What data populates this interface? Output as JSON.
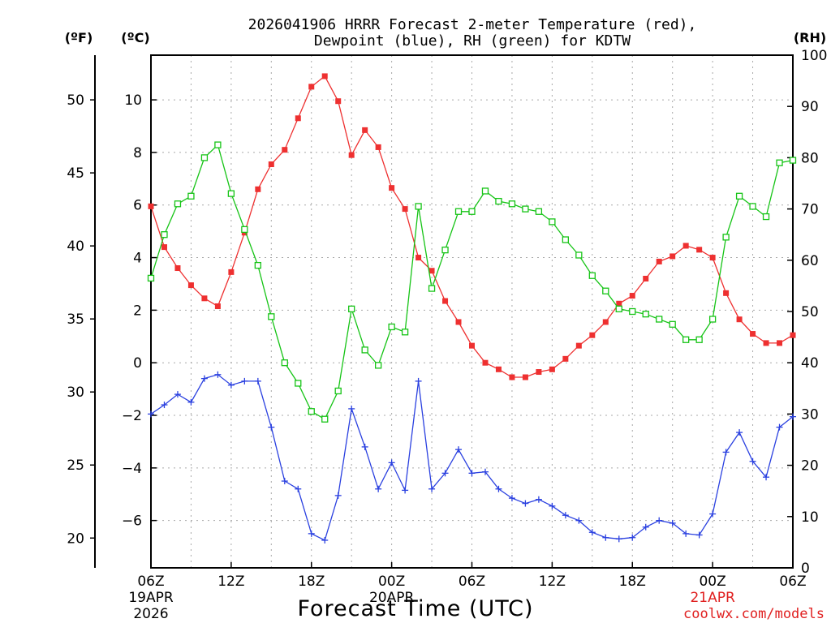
{
  "chart_data": {
    "type": "line",
    "title_line1": "2026041906 HRRR Forecast 2-meter Temperature (red),",
    "title_line2": "Dewpoint (blue), RH (green) for KDTW",
    "xlabel": "Forecast Time (UTC)",
    "watermark": "coolwx.com/models",
    "unit_f": "(ºF)",
    "unit_c": "(ºC)",
    "unit_rh": "(RH)",
    "x_range_hours": [
      0,
      48
    ],
    "y_celsius_range": [
      -7.8,
      11.7
    ],
    "y_rh_range": [
      0,
      100
    ],
    "x_ticks": [
      {
        "h": 0,
        "label": "06Z",
        "sub1": "19APR",
        "sub2": "2026"
      },
      {
        "h": 6,
        "label": "12Z",
        "sub1": "",
        "sub2": ""
      },
      {
        "h": 12,
        "label": "18Z",
        "sub1": "",
        "sub2": ""
      },
      {
        "h": 18,
        "label": "00Z",
        "sub1": "20APR",
        "sub2": ""
      },
      {
        "h": 24,
        "label": "06Z",
        "sub1": "",
        "sub2": ""
      },
      {
        "h": 30,
        "label": "12Z",
        "sub1": "",
        "sub2": ""
      },
      {
        "h": 36,
        "label": "18Z",
        "sub1": "",
        "sub2": ""
      },
      {
        "h": 42,
        "label": "00Z",
        "sub1": "21APR",
        "sub2": ""
      },
      {
        "h": 48,
        "label": "06Z",
        "sub1": "",
        "sub2": ""
      }
    ],
    "c_ticks": [
      {
        "v": 10,
        "label": "10"
      },
      {
        "v": 8,
        "label": "8"
      },
      {
        "v": 6,
        "label": "6"
      },
      {
        "v": 4,
        "label": "4"
      },
      {
        "v": 2,
        "label": "2"
      },
      {
        "v": 0,
        "label": "0"
      },
      {
        "v": -2,
        "label": "−2"
      },
      {
        "v": -4,
        "label": "−4"
      },
      {
        "v": -6,
        "label": "−6"
      }
    ],
    "f_ticks": [
      {
        "v": 50,
        "label": "50"
      },
      {
        "v": 45,
        "label": "45"
      },
      {
        "v": 40,
        "label": "40"
      },
      {
        "v": 35,
        "label": "35"
      },
      {
        "v": 30,
        "label": "30"
      },
      {
        "v": 25,
        "label": "25"
      },
      {
        "v": 20,
        "label": "20"
      }
    ],
    "rh_ticks": [
      {
        "v": 100,
        "label": "100"
      },
      {
        "v": 90,
        "label": "90"
      },
      {
        "v": 80,
        "label": "80"
      },
      {
        "v": 70,
        "label": "70"
      },
      {
        "v": 60,
        "label": "60"
      },
      {
        "v": 50,
        "label": "50"
      },
      {
        "v": 40,
        "label": "40"
      },
      {
        "v": 30,
        "label": "30"
      },
      {
        "v": 20,
        "label": "20"
      },
      {
        "v": 10,
        "label": "10"
      },
      {
        "v": 0,
        "label": "0"
      }
    ],
    "colors": {
      "temperature": "#ee3030",
      "dewpoint": "#2a40e0",
      "rh": "#16c416",
      "grid": "#a8a8a8",
      "axis": "#000000"
    },
    "series": [
      {
        "name": "Temperature (°C)",
        "key": "temperature",
        "marker": "filled-square",
        "values": [
          5.95,
          4.4,
          3.6,
          2.95,
          2.45,
          2.15,
          3.45,
          4.95,
          6.6,
          7.55,
          8.1,
          9.3,
          10.5,
          10.9,
          9.95,
          7.9,
          8.85,
          8.2,
          6.65,
          5.85,
          4.0,
          3.5,
          2.35,
          1.55,
          0.65,
          0.0,
          -0.25,
          -0.55,
          -0.55,
          -0.35,
          -0.25,
          0.15,
          0.65,
          1.05,
          1.55,
          2.25,
          2.55,
          3.2,
          3.85,
          4.05,
          4.45,
          4.3,
          4.0,
          2.65,
          1.65,
          1.1,
          0.75,
          0.75,
          1.05
        ]
      },
      {
        "name": "Dewpoint (°C)",
        "key": "dewpoint",
        "marker": "plus",
        "values": [
          -1.95,
          -1.6,
          -1.2,
          -1.5,
          -0.6,
          -0.45,
          -0.85,
          -0.7,
          -0.7,
          -2.45,
          -4.5,
          -4.8,
          -6.5,
          -6.75,
          -5.05,
          -1.75,
          -3.2,
          -4.8,
          -3.8,
          -4.85,
          -0.7,
          -4.8,
          -4.2,
          -3.3,
          -4.2,
          -4.15,
          -4.8,
          -5.15,
          -5.35,
          -5.2,
          -5.45,
          -5.8,
          -6.0,
          -6.45,
          -6.65,
          -6.7,
          -6.65,
          -6.25,
          -6.0,
          -6.1,
          -6.5,
          -6.55,
          -5.75,
          -3.4,
          -2.65,
          -3.75,
          -4.35,
          -2.45,
          -2.05
        ]
      },
      {
        "name": "Relative Humidity (%)",
        "key": "rh",
        "marker": "open-square",
        "values": [
          56.5,
          65,
          71,
          72.5,
          80,
          82.5,
          73,
          66,
          59,
          49,
          40,
          36,
          30.5,
          29,
          34.5,
          50.5,
          42.5,
          39.5,
          47,
          46,
          70.5,
          54.5,
          62,
          69.5,
          69.5,
          73.5,
          71.5,
          71,
          70,
          69.5,
          67.5,
          64,
          61,
          57,
          54,
          50.5,
          50,
          49.5,
          48.5,
          47.5,
          44.5,
          44.5,
          48.5,
          64.5,
          72.5,
          70.5,
          68.5,
          79,
          79.5
        ]
      }
    ]
  }
}
